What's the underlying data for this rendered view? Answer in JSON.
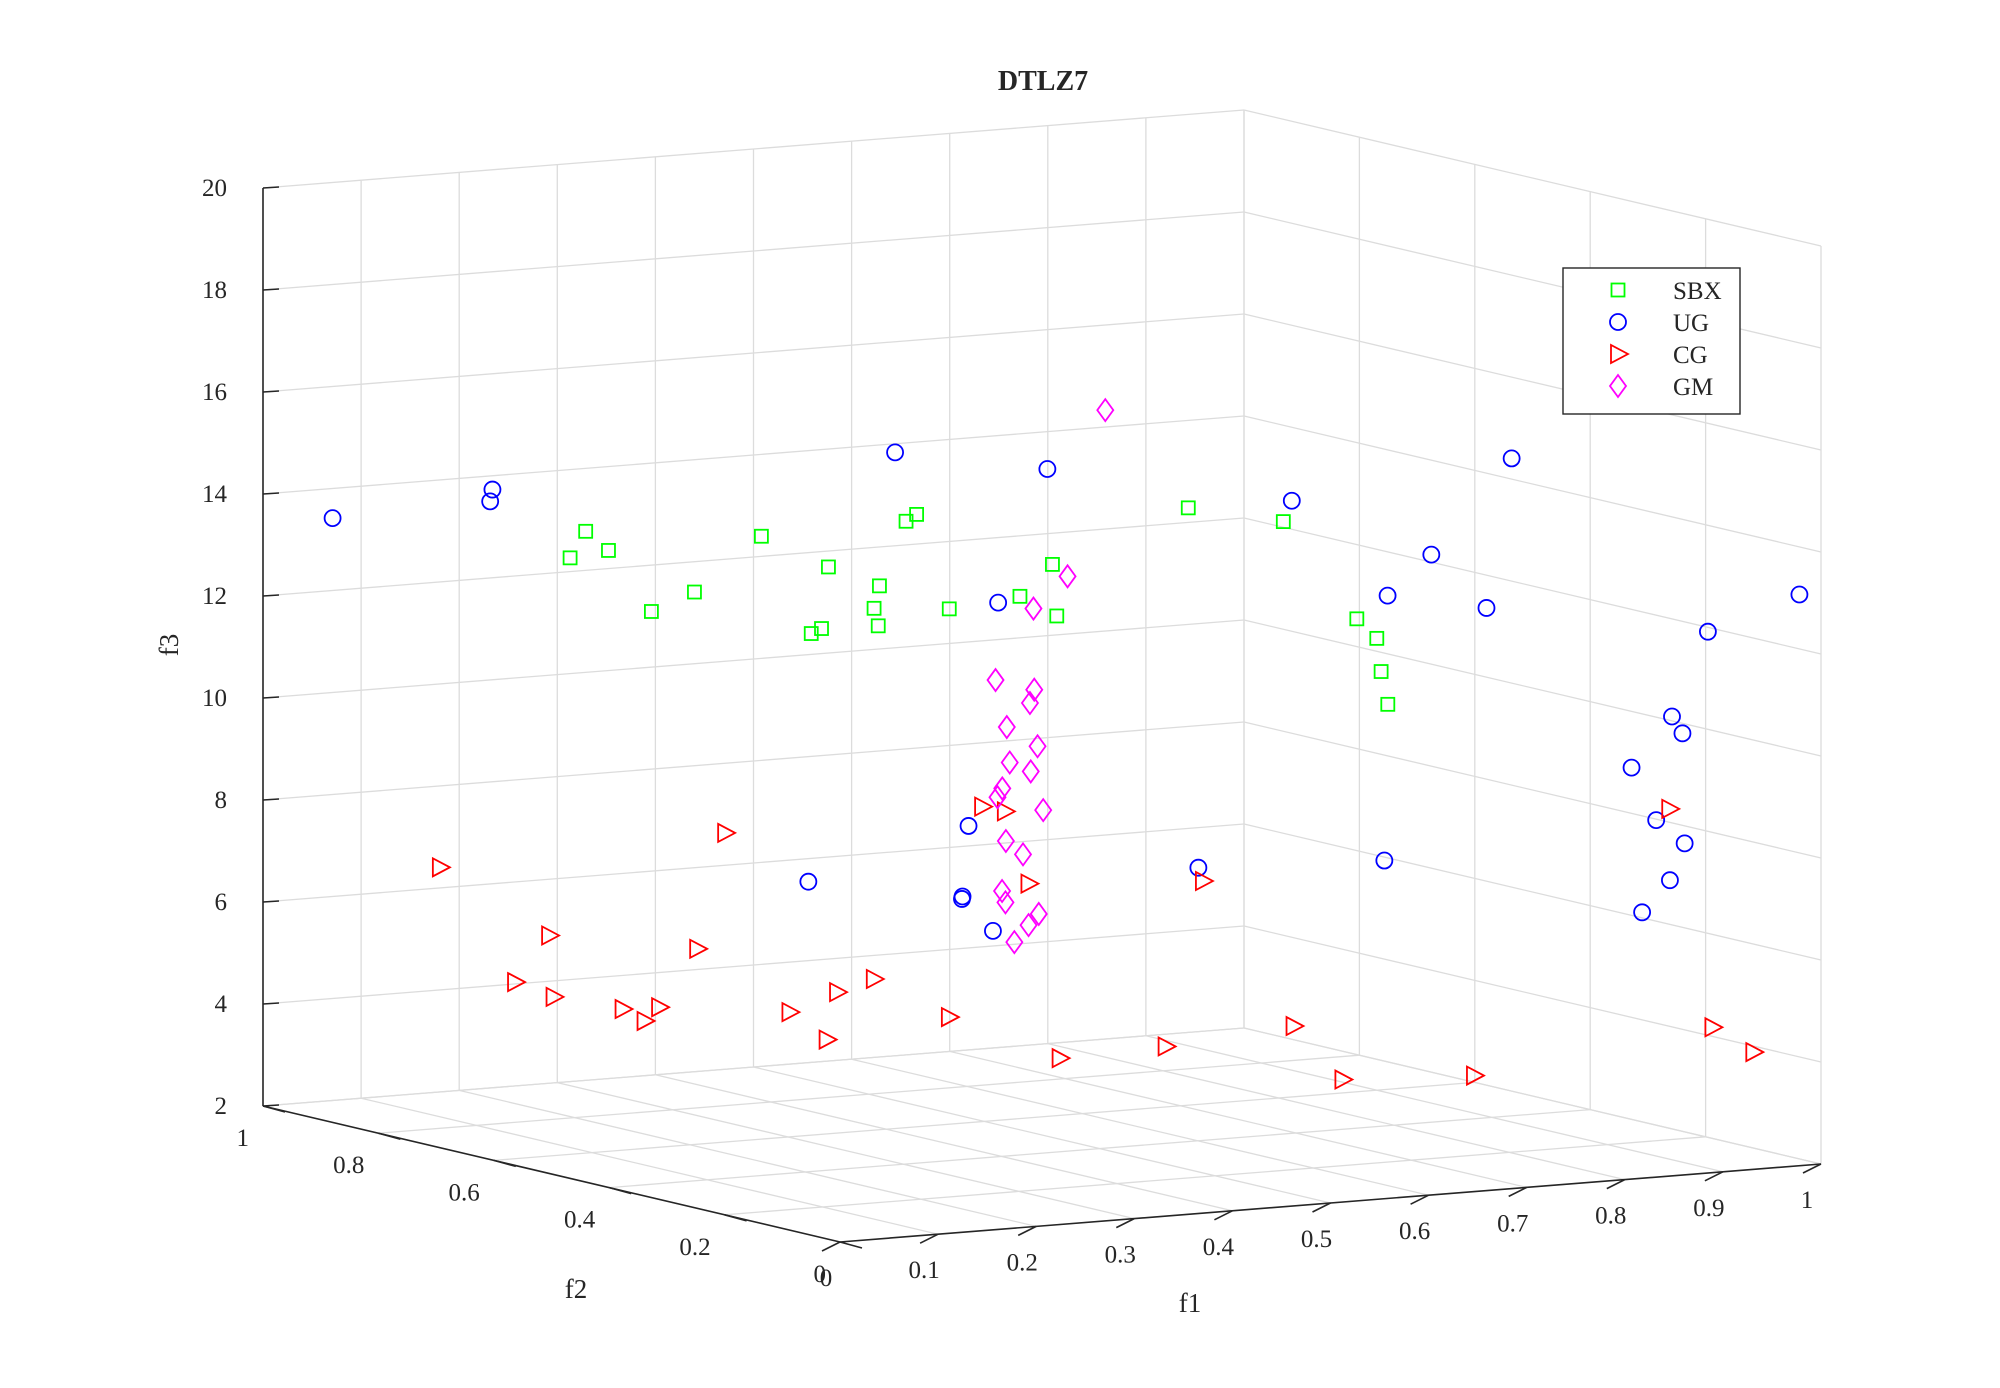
{
  "chart_data": {
    "type": "scatter",
    "title": "DTLZ7",
    "xlabel": "f1",
    "ylabel": "f2",
    "zlabel": "f3",
    "xlim": [
      0,
      1
    ],
    "ylim": [
      0,
      1
    ],
    "zlim": [
      2,
      20
    ],
    "xticks": [
      "0",
      "0.1",
      "0.2",
      "0.3",
      "0.4",
      "0.5",
      "0.6",
      "0.7",
      "0.8",
      "0.9",
      "1"
    ],
    "yticks": [
      "0",
      "0.2",
      "0.4",
      "0.6",
      "0.8",
      "1"
    ],
    "zticks": [
      "2",
      "4",
      "6",
      "8",
      "10",
      "12",
      "14",
      "16",
      "18",
      "20"
    ],
    "grid": true,
    "legend_position": "top-right",
    "series": [
      {
        "name": "SBX",
        "marker": "square",
        "color": "#00ff00",
        "points": [
          [
            0.176,
            0.767,
            13.1
          ],
          [
            0.216,
            0.808,
            13.45
          ],
          [
            0.221,
            0.777,
            13.15
          ],
          [
            0.213,
            0.689,
            12.2
          ],
          [
            0.251,
            0.679,
            12.55
          ],
          [
            0.301,
            0.648,
            13.65
          ],
          [
            0.327,
            0.576,
            13.2
          ],
          [
            0.391,
            0.532,
            14.25
          ],
          [
            0.402,
            0.569,
            14.0
          ],
          [
            0.36,
            0.553,
            12.4
          ],
          [
            0.356,
            0.539,
            12.1
          ],
          [
            0.379,
            0.576,
            12.75
          ],
          [
            0.399,
            0.489,
            12.5
          ],
          [
            0.444,
            0.443,
            12.8
          ],
          [
            0.473,
            0.436,
            13.4
          ],
          [
            0.458,
            0.403,
            12.5
          ],
          [
            0.545,
            0.323,
            14.7
          ],
          [
            0.606,
            0.262,
            14.5
          ],
          [
            0.628,
            0.172,
            12.8
          ],
          [
            0.646,
            0.168,
            12.4
          ],
          [
            0.641,
            0.152,
            11.8
          ],
          [
            0.639,
            0.137,
            11.2
          ],
          [
            0.337,
            0.605,
            11.9
          ],
          [
            0.313,
            0.582,
            11.9
          ]
        ]
      },
      {
        "name": "UG",
        "marker": "circle",
        "color": "#0000ff",
        "points": [
          [
            0.008,
            0.893,
            13.8
          ],
          [
            0.141,
            0.846,
            14.05
          ],
          [
            0.148,
            0.854,
            14.25
          ],
          [
            0.402,
            0.588,
            15.3
          ],
          [
            0.489,
            0.472,
            15.15
          ],
          [
            0.647,
            0.317,
            14.7
          ],
          [
            0.737,
            0.089,
            16.0
          ],
          [
            0.711,
            0.184,
            13.9
          ],
          [
            0.677,
            0.202,
            13.1
          ],
          [
            0.729,
            0.119,
            13.0
          ],
          [
            0.44,
            0.474,
            12.6
          ],
          [
            0.978,
            0.0,
            13.2
          ],
          [
            0.874,
            0.044,
            10.85
          ],
          [
            0.877,
            0.031,
            10.55
          ],
          [
            0.92,
            0.06,
            12.4
          ],
          [
            0.832,
            0.0,
            9.0
          ],
          [
            0.851,
            0.075,
            9.8
          ],
          [
            0.861,
            0.0,
            8.5
          ],
          [
            0.846,
            0.0,
            7.8
          ],
          [
            0.82,
            0.004,
            7.2
          ],
          [
            0.659,
            0.177,
            8.0
          ],
          [
            0.56,
            0.331,
            7.6
          ],
          [
            0.421,
            0.493,
            8.2
          ],
          [
            0.419,
            0.5,
            6.8
          ],
          [
            0.43,
            0.466,
            6.2
          ],
          [
            0.333,
            0.621,
            6.9
          ],
          [
            0.419,
            0.501,
            6.75
          ]
        ]
      },
      {
        "name": "CG",
        "marker": "triangle-right",
        "color": "#ff0000",
        "points": [
          [
            0.115,
            0.889,
            6.8
          ],
          [
            0.184,
            0.817,
            5.55
          ],
          [
            0.164,
            0.842,
            4.6
          ],
          [
            0.195,
            0.828,
            4.3
          ],
          [
            0.236,
            0.74,
            4.0
          ],
          [
            0.233,
            0.773,
            4.15
          ],
          [
            0.242,
            0.725,
            4.3
          ],
          [
            0.287,
            0.687,
            7.75
          ],
          [
            0.262,
            0.693,
            5.5
          ],
          [
            0.344,
            0.59,
            4.8
          ],
          [
            0.309,
            0.613,
            4.4
          ],
          [
            0.331,
            0.586,
            3.9
          ],
          [
            0.365,
            0.562,
            5.1
          ],
          [
            0.398,
            0.488,
            4.5
          ],
          [
            0.436,
            0.495,
            8.55
          ],
          [
            0.445,
            0.43,
            7.2
          ],
          [
            0.537,
            0.284,
            7.5
          ],
          [
            0.465,
            0.41,
            3.8
          ],
          [
            0.526,
            0.33,
            4.15
          ],
          [
            0.628,
            0.197,
            3.7
          ],
          [
            0.607,
            0.246,
            4.65
          ],
          [
            0.708,
            0.105,
            3.9
          ],
          [
            0.87,
            0.042,
            9.05
          ],
          [
            0.931,
            0.0,
            4.3
          ],
          [
            0.914,
            0.042,
            4.7
          ],
          [
            0.438,
            0.459,
            8.55
          ]
        ]
      },
      {
        "name": "GM",
        "marker": "diamond",
        "color": "#ff00ff",
        "points": [
          [
            0.501,
            0.392,
            16.5
          ],
          [
            0.479,
            0.42,
            13.2
          ],
          [
            0.456,
            0.44,
            12.55
          ],
          [
            0.435,
            0.47,
            11.1
          ],
          [
            0.458,
            0.442,
            10.95
          ],
          [
            0.453,
            0.441,
            10.7
          ],
          [
            0.44,
            0.459,
            10.2
          ],
          [
            0.459,
            0.438,
            9.85
          ],
          [
            0.443,
            0.459,
            9.5
          ],
          [
            0.455,
            0.443,
            9.35
          ],
          [
            0.436,
            0.46,
            9.0
          ],
          [
            0.437,
            0.47,
            8.8
          ],
          [
            0.463,
            0.435,
            8.6
          ],
          [
            0.442,
            0.464,
            7.95
          ],
          [
            0.453,
            0.453,
            7.7
          ],
          [
            0.434,
            0.457,
            7.0
          ],
          [
            0.441,
            0.463,
            6.75
          ],
          [
            0.462,
            0.441,
            6.55
          ],
          [
            0.451,
            0.44,
            6.35
          ],
          [
            0.443,
            0.451,
            6.0
          ]
        ]
      }
    ]
  }
}
